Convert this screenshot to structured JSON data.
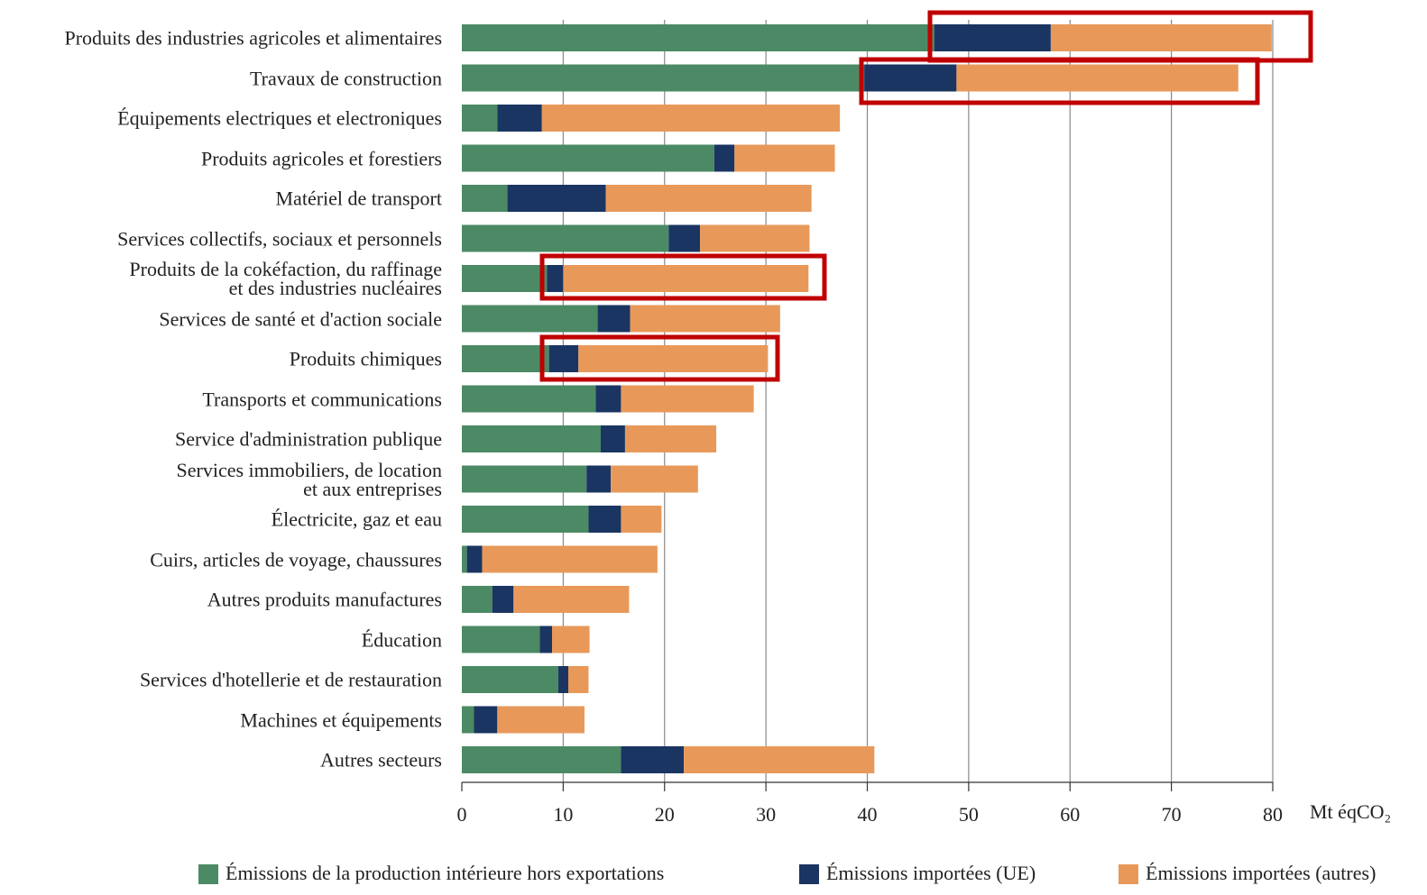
{
  "chart_data": {
    "type": "stacked-barh",
    "categories": [
      "Produits des industries agricoles et alimentaires",
      "Travaux de construction",
      "Équipements electriques et electroniques",
      "Produits agricoles et forestiers",
      "Matériel de transport",
      "Services collectifs, sociaux et personnels",
      "Produits de la cokéfaction, du raffinage\net des industries nucléaires",
      "Services de santé et d'action sociale",
      "Produits chimiques",
      "Transports et communications",
      "Service d'administration publique",
      "Services immobiliers, de location\net aux entreprises",
      "Électricite, gaz et eau",
      "Cuirs, articles de voyage, chaussures",
      "Autres produits manufactures",
      "Éducation",
      "Services d'hotellerie et de restauration",
      "Machines et équipements",
      "Autres secteurs"
    ],
    "series": [
      {
        "name": "Émissions de la production intérieure hors exportations",
        "color": "#4b8a64",
        "values": [
          46.6,
          39.7,
          3.5,
          24.9,
          4.5,
          20.4,
          8.4,
          13.4,
          8.6,
          13.2,
          13.7,
          12.3,
          12.5,
          0.5,
          3.0,
          7.7,
          9.5,
          1.2,
          15.7
        ]
      },
      {
        "name": "Émissions importées (UE)",
        "color": "#1b3562",
        "values": [
          11.5,
          9.1,
          4.4,
          2.0,
          9.7,
          3.1,
          1.6,
          3.2,
          2.9,
          2.5,
          2.4,
          2.4,
          3.2,
          1.5,
          2.1,
          1.2,
          1.0,
          2.3,
          6.2
        ]
      },
      {
        "name": "Émissions importées (autres)",
        "color": "#e8995a",
        "values": [
          21.8,
          27.8,
          29.4,
          9.9,
          20.3,
          10.8,
          24.2,
          14.8,
          18.7,
          13.1,
          9.0,
          8.6,
          4.0,
          17.3,
          11.4,
          3.7,
          2.0,
          8.6,
          18.8
        ]
      }
    ],
    "x_label": "Mt éqCO₂",
    "xlim": [
      0,
      80
    ],
    "xticks": [
      0,
      10,
      20,
      30,
      40,
      50,
      60,
      70,
      80
    ],
    "grid": true,
    "legend": "bottom"
  }
}
